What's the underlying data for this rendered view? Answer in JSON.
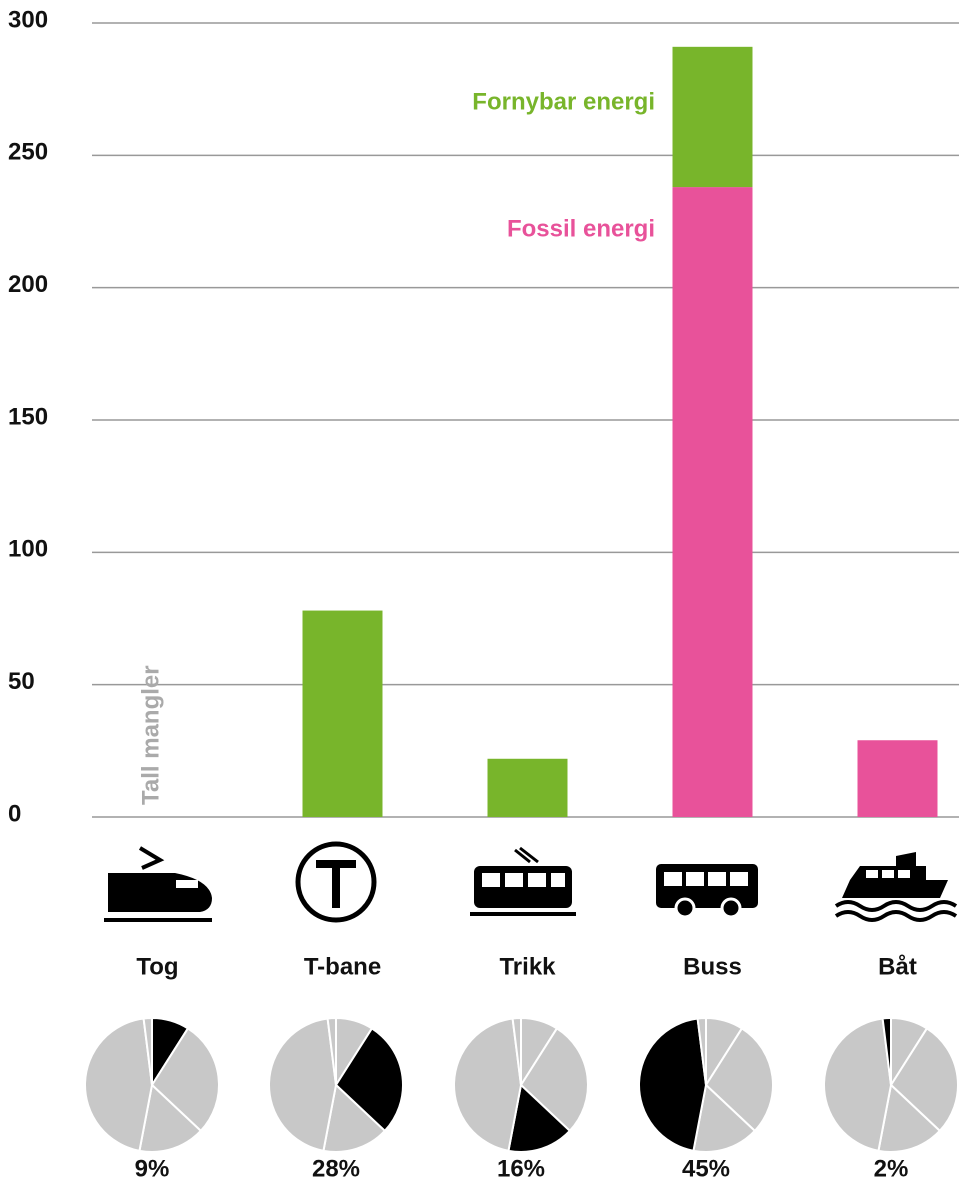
{
  "chart_data": [
    {
      "type": "bar",
      "stacked": true,
      "categories": [
        "Tog",
        "T-bane",
        "Trikk",
        "Buss",
        "Båt"
      ],
      "series": [
        {
          "name": "Fossil energi",
          "color": "#e8529a",
          "values": [
            null,
            0,
            0,
            238,
            29
          ]
        },
        {
          "name": "Fornybar energi",
          "color": "#78b52b",
          "values": [
            null,
            78,
            22,
            53,
            0
          ]
        }
      ],
      "ylim": [
        0,
        300
      ],
      "yticks": [
        0,
        50,
        100,
        150,
        200,
        250,
        300
      ],
      "grid": true,
      "annotation": "Tall mangler"
    },
    {
      "type": "pie",
      "values": [
        9,
        28,
        16,
        45,
        2
      ],
      "value_labels": [
        "9%",
        "28%",
        "16%",
        "45%",
        "2%"
      ],
      "highlight_color": "#000000",
      "color": "#c8c8c8"
    }
  ]
}
